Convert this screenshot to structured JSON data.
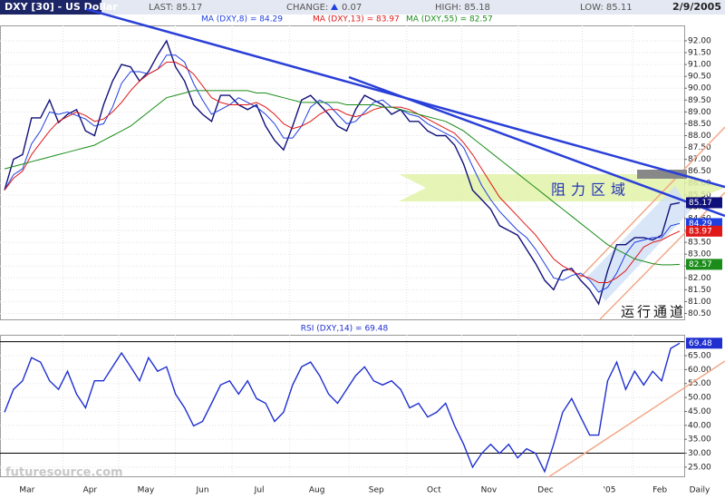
{
  "header": {
    "last": "LAST: 85.17",
    "change_label": "CHANGE:",
    "change_value": "0.07",
    "high": "HIGH: 85.18",
    "low": "LOW: 85.11",
    "date": "2/9/2005",
    "watermark": "futuresource.com"
  },
  "annotations": {
    "resistance": "阻力区域",
    "channel": "运行通道"
  },
  "chart_data": [
    {
      "type": "line",
      "title": "DXY [30] - US Dollar",
      "series": [
        {
          "name": "DXY [30] - US Dollar",
          "color": "#10107a",
          "values": [
            85.7,
            87.0,
            87.2,
            88.75,
            88.75,
            89.5,
            88.55,
            88.9,
            89.1,
            88.2,
            88.0,
            89.3,
            90.3,
            91.0,
            90.9,
            90.3,
            90.7,
            91.4,
            92.0,
            90.9,
            90.3,
            89.3,
            88.9,
            88.6,
            89.7,
            89.7,
            89.3,
            89.1,
            89.3,
            88.4,
            87.8,
            87.4,
            88.4,
            89.5,
            89.7,
            89.3,
            88.9,
            88.4,
            88.2,
            89.1,
            89.7,
            89.5,
            89.3,
            88.9,
            89.1,
            88.6,
            88.6,
            88.2,
            88.0,
            88.0,
            87.6,
            86.8,
            85.7,
            85.3,
            84.9,
            84.2,
            84.0,
            83.8,
            83.2,
            82.6,
            81.9,
            81.5,
            82.3,
            82.4,
            81.9,
            81.5,
            80.9,
            82.3,
            83.4,
            83.4,
            83.7,
            83.7,
            83.6,
            83.8,
            85.1,
            85.17
          ]
        },
        {
          "name": "MA (DXY,8) = 84.29",
          "color": "#1f3fe0",
          "values": [
            85.7,
            86.35,
            86.6,
            87.65,
            88.2,
            89.0,
            88.9,
            89.0,
            88.85,
            88.7,
            88.4,
            88.5,
            89.2,
            90.2,
            90.7,
            90.7,
            90.6,
            90.8,
            91.4,
            91.4,
            91.1,
            90.2,
            89.5,
            88.9,
            89.1,
            89.3,
            89.6,
            89.4,
            89.2,
            88.9,
            88.5,
            87.9,
            87.9,
            88.4,
            89.2,
            89.5,
            89.3,
            88.9,
            88.5,
            88.6,
            89.0,
            89.4,
            89.5,
            89.2,
            89.1,
            88.9,
            88.8,
            88.5,
            88.3,
            88.1,
            87.9,
            87.5,
            86.7,
            85.9,
            85.3,
            84.8,
            84.4,
            84.0,
            83.7,
            83.2,
            82.6,
            82.0,
            81.9,
            82.1,
            82.2,
            81.9,
            81.4,
            81.6,
            82.2,
            83.0,
            83.5,
            83.6,
            83.7,
            83.7,
            84.2,
            84.29
          ]
        },
        {
          "name": "MA (DXY,13) = 83.97",
          "color": "#e01818",
          "values": [
            85.7,
            86.2,
            86.5,
            87.2,
            87.7,
            88.2,
            88.6,
            88.8,
            89.0,
            88.85,
            88.6,
            88.7,
            89.0,
            89.4,
            89.9,
            90.3,
            90.6,
            90.8,
            91.1,
            91.1,
            90.9,
            90.6,
            90.1,
            89.6,
            89.4,
            89.3,
            89.3,
            89.3,
            89.4,
            89.2,
            88.9,
            88.5,
            88.3,
            88.4,
            88.6,
            88.9,
            89.1,
            89.1,
            88.9,
            88.8,
            88.9,
            89.1,
            89.2,
            89.2,
            89.2,
            89.1,
            88.9,
            88.7,
            88.5,
            88.3,
            88.1,
            87.7,
            87.2,
            86.6,
            86.0,
            85.4,
            85.0,
            84.6,
            84.2,
            83.8,
            83.3,
            82.8,
            82.5,
            82.3,
            82.1,
            82.0,
            81.8,
            81.8,
            82.0,
            82.3,
            82.8,
            83.3,
            83.5,
            83.6,
            83.8,
            83.97
          ]
        },
        {
          "name": "MA (DXY,55) = 82.57",
          "color": "#1a8c1a",
          "values": [
            86.6,
            86.7,
            86.8,
            86.9,
            87.0,
            87.1,
            87.2,
            87.3,
            87.4,
            87.5,
            87.6,
            87.8,
            88.0,
            88.2,
            88.4,
            88.7,
            89.0,
            89.3,
            89.6,
            89.7,
            89.8,
            89.9,
            89.9,
            89.9,
            89.9,
            89.9,
            89.9,
            89.9,
            89.8,
            89.8,
            89.7,
            89.6,
            89.5,
            89.4,
            89.4,
            89.4,
            89.4,
            89.4,
            89.3,
            89.3,
            89.3,
            89.3,
            89.2,
            89.2,
            89.1,
            89.0,
            88.9,
            88.8,
            88.7,
            88.6,
            88.4,
            88.2,
            87.9,
            87.6,
            87.3,
            87.0,
            86.7,
            86.4,
            86.1,
            85.8,
            85.5,
            85.2,
            84.9,
            84.6,
            84.3,
            84.0,
            83.7,
            83.4,
            83.2,
            83.0,
            82.8,
            82.7,
            82.6,
            82.55,
            82.55,
            82.57
          ]
        }
      ],
      "ylim": [
        80.25,
        92.65
      ],
      "yticks": [
        {
          "value": 80.5,
          "label": "80.50"
        },
        {
          "value": 81,
          "label": "81.00"
        },
        {
          "value": 81.5,
          "label": "81.50"
        },
        {
          "value": 82,
          "label": "82.00"
        },
        {
          "value": 82.5,
          "label": "82.50"
        },
        {
          "value": 83,
          "label": "83.00"
        },
        {
          "value": 83.5,
          "label": "83.50"
        },
        {
          "value": 84,
          "label": "84.00"
        },
        {
          "value": 84.5,
          "label": "84.50"
        },
        {
          "value": 85,
          "label": "85.00"
        },
        {
          "value": 85.5,
          "label": "85.50"
        },
        {
          "value": 86,
          "label": "86.00"
        },
        {
          "value": 86.5,
          "label": "86.50"
        },
        {
          "value": 87,
          "label": "87.00"
        },
        {
          "value": 87.5,
          "label": "87.50"
        },
        {
          "value": 88,
          "label": "88.00"
        },
        {
          "value": 88.5,
          "label": "88.50"
        },
        {
          "value": 89,
          "label": "89.00"
        },
        {
          "value": 89.5,
          "label": "89.50"
        },
        {
          "value": 90,
          "label": "90.00"
        },
        {
          "value": 90.5,
          "label": "90.50"
        },
        {
          "value": 91,
          "label": "91.00"
        },
        {
          "value": 91.5,
          "label": "91.50"
        },
        {
          "value": 92,
          "label": "92.00"
        }
      ],
      "grid": true
    },
    {
      "type": "line",
      "title": "RSI (DXY,14) = 69.48",
      "series": [
        {
          "name": "RSI (DXY,14) = 69.48",
          "color": "#1f2fd0",
          "values": [
            44.7,
            52.9,
            56,
            64.3,
            62.7,
            56,
            52.9,
            59.4,
            51.2,
            46.3,
            56,
            56,
            61,
            66,
            61,
            56,
            64.3,
            59.4,
            61,
            51.2,
            46.3,
            39.8,
            41.4,
            47.9,
            54.5,
            56,
            51.2,
            56,
            49.6,
            47.9,
            41.4,
            44.7,
            54.5,
            61,
            62.7,
            57.8,
            51.2,
            47.9,
            52.9,
            57.8,
            61,
            56,
            54.5,
            56,
            52.9,
            46.3,
            47.9,
            43,
            44.7,
            47.9,
            39.8,
            33.2,
            25,
            29.9,
            33.2,
            29.9,
            33.2,
            28.3,
            31.6,
            29.9,
            23.4,
            33.2,
            44.7,
            49.6,
            43,
            36.5,
            36.5,
            56,
            62.7,
            52.9,
            59.4,
            54.5,
            59.4,
            56,
            67.6,
            69.48
          ]
        }
      ],
      "ylim": [
        21.7,
        72.5
      ],
      "yticks": [
        {
          "value": 25,
          "label": "25.00"
        },
        {
          "value": 30,
          "label": "30.00"
        },
        {
          "value": 35,
          "label": "35.00"
        },
        {
          "value": 40,
          "label": "40.00"
        },
        {
          "value": 45,
          "label": "45.00"
        },
        {
          "value": 50,
          "label": "50.00"
        },
        {
          "value": 55,
          "label": "55.00"
        },
        {
          "value": 60,
          "label": "60.00"
        },
        {
          "value": 65,
          "label": "65.00"
        }
      ],
      "hlines": [
        70,
        30
      ],
      "xticks": [
        {
          "value": 2.5,
          "label": "Mar"
        },
        {
          "value": 9.5,
          "label": "Apr"
        },
        {
          "value": 15.7,
          "label": "May"
        },
        {
          "value": 22,
          "label": "Jun"
        },
        {
          "value": 28.3,
          "label": "Jul"
        },
        {
          "value": 34.7,
          "label": "Aug"
        },
        {
          "value": 41.3,
          "label": "Sep"
        },
        {
          "value": 47.7,
          "label": "Oct"
        },
        {
          "value": 53.8,
          "label": "Nov"
        },
        {
          "value": 60.1,
          "label": "Dec"
        },
        {
          "value": 67.2,
          "label": "'05"
        },
        {
          "value": 72.8,
          "label": "Feb"
        }
      ],
      "xlabel": "Daily",
      "grid": true
    }
  ]
}
